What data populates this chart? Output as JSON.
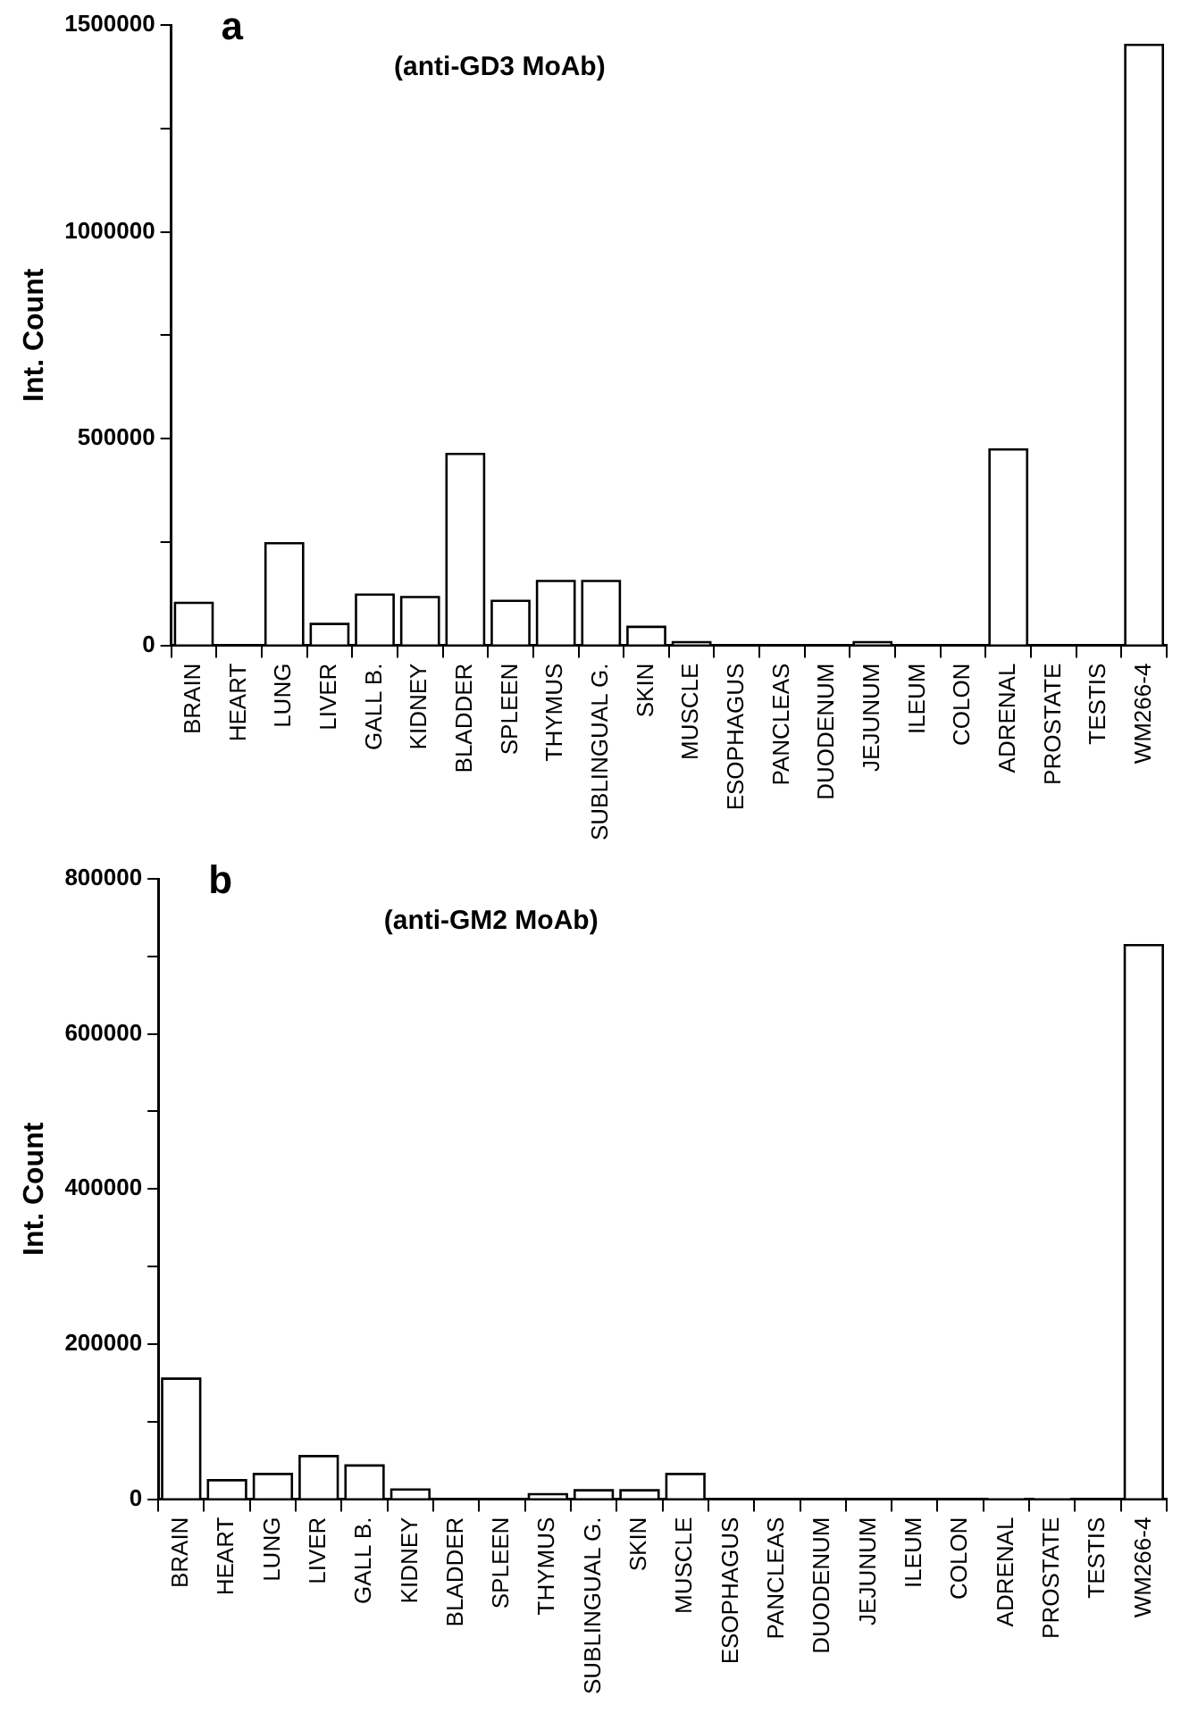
{
  "chart_data": [
    {
      "type": "bar",
      "title": "a",
      "subtitle": "(anti-GD3 MoAb)",
      "ylabel": "Int. Count",
      "categories": [
        "BRAIN",
        "HEART",
        "LUNG",
        "LIVER",
        "GALL B.",
        "KIDNEY",
        "BLADDER",
        "SPLEEN",
        "THYMUS",
        "SUBLINGUAL G.",
        "SKIN",
        "MUSCLE",
        "ESOPHAGUS",
        "PANCLEAS",
        "DUODENUM",
        "JEJUNUM",
        "ILEUM",
        "COLON",
        "ADRENAL",
        "PROSTATE",
        "TESTIS",
        "WM266-4"
      ],
      "values": [
        100000,
        0,
        244000,
        49000,
        120000,
        114000,
        460000,
        105000,
        153000,
        153000,
        42000,
        5000,
        0,
        0,
        0,
        5000,
        0,
        0,
        471000,
        0,
        0,
        1449000
      ],
      "color": "#ffffff",
      "ylim": [
        0,
        1500000
      ],
      "yticks": [
        0,
        {
          "value": 250000,
          "label": null
        },
        500000,
        {
          "value": 750000,
          "label": null
        },
        1000000,
        {
          "value": 1250000,
          "label": null
        },
        1500000
      ],
      "grid": false,
      "legend": false
    },
    {
      "type": "bar",
      "title": "b",
      "subtitle": "(anti-GM2 MoAb)",
      "ylabel": "Int. Count",
      "categories": [
        "BRAIN",
        "HEART",
        "LUNG",
        "LIVER",
        "GALL B.",
        "KIDNEY",
        "BLADDER",
        "SPLEEN",
        "THYMUS",
        "SUBLINGUAL G.",
        "SKIN",
        "MUSCLE",
        "ESOPHAGUS",
        "PANCLEAS",
        "DUODENUM",
        "JEJUNUM",
        "ILEUM",
        "COLON",
        "ADRENAL",
        "PROSTATE",
        "TESTIS",
        "WM266-4"
      ],
      "values": [
        154000,
        23000,
        31000,
        54000,
        42000,
        11000,
        0,
        0,
        5000,
        10000,
        10000,
        31000,
        0,
        0,
        0,
        0,
        0,
        0,
        2000,
        2000,
        0,
        713000
      ],
      "color": "#ffffff",
      "ylim": [
        0,
        800000
      ],
      "yticks": [
        0,
        {
          "value": 100000,
          "label": null
        },
        200000,
        {
          "value": 300000,
          "label": null
        },
        400000,
        {
          "value": 500000,
          "label": null
        },
        600000,
        {
          "value": 700000,
          "label": null
        },
        800000
      ],
      "grid": false,
      "legend": false
    }
  ]
}
